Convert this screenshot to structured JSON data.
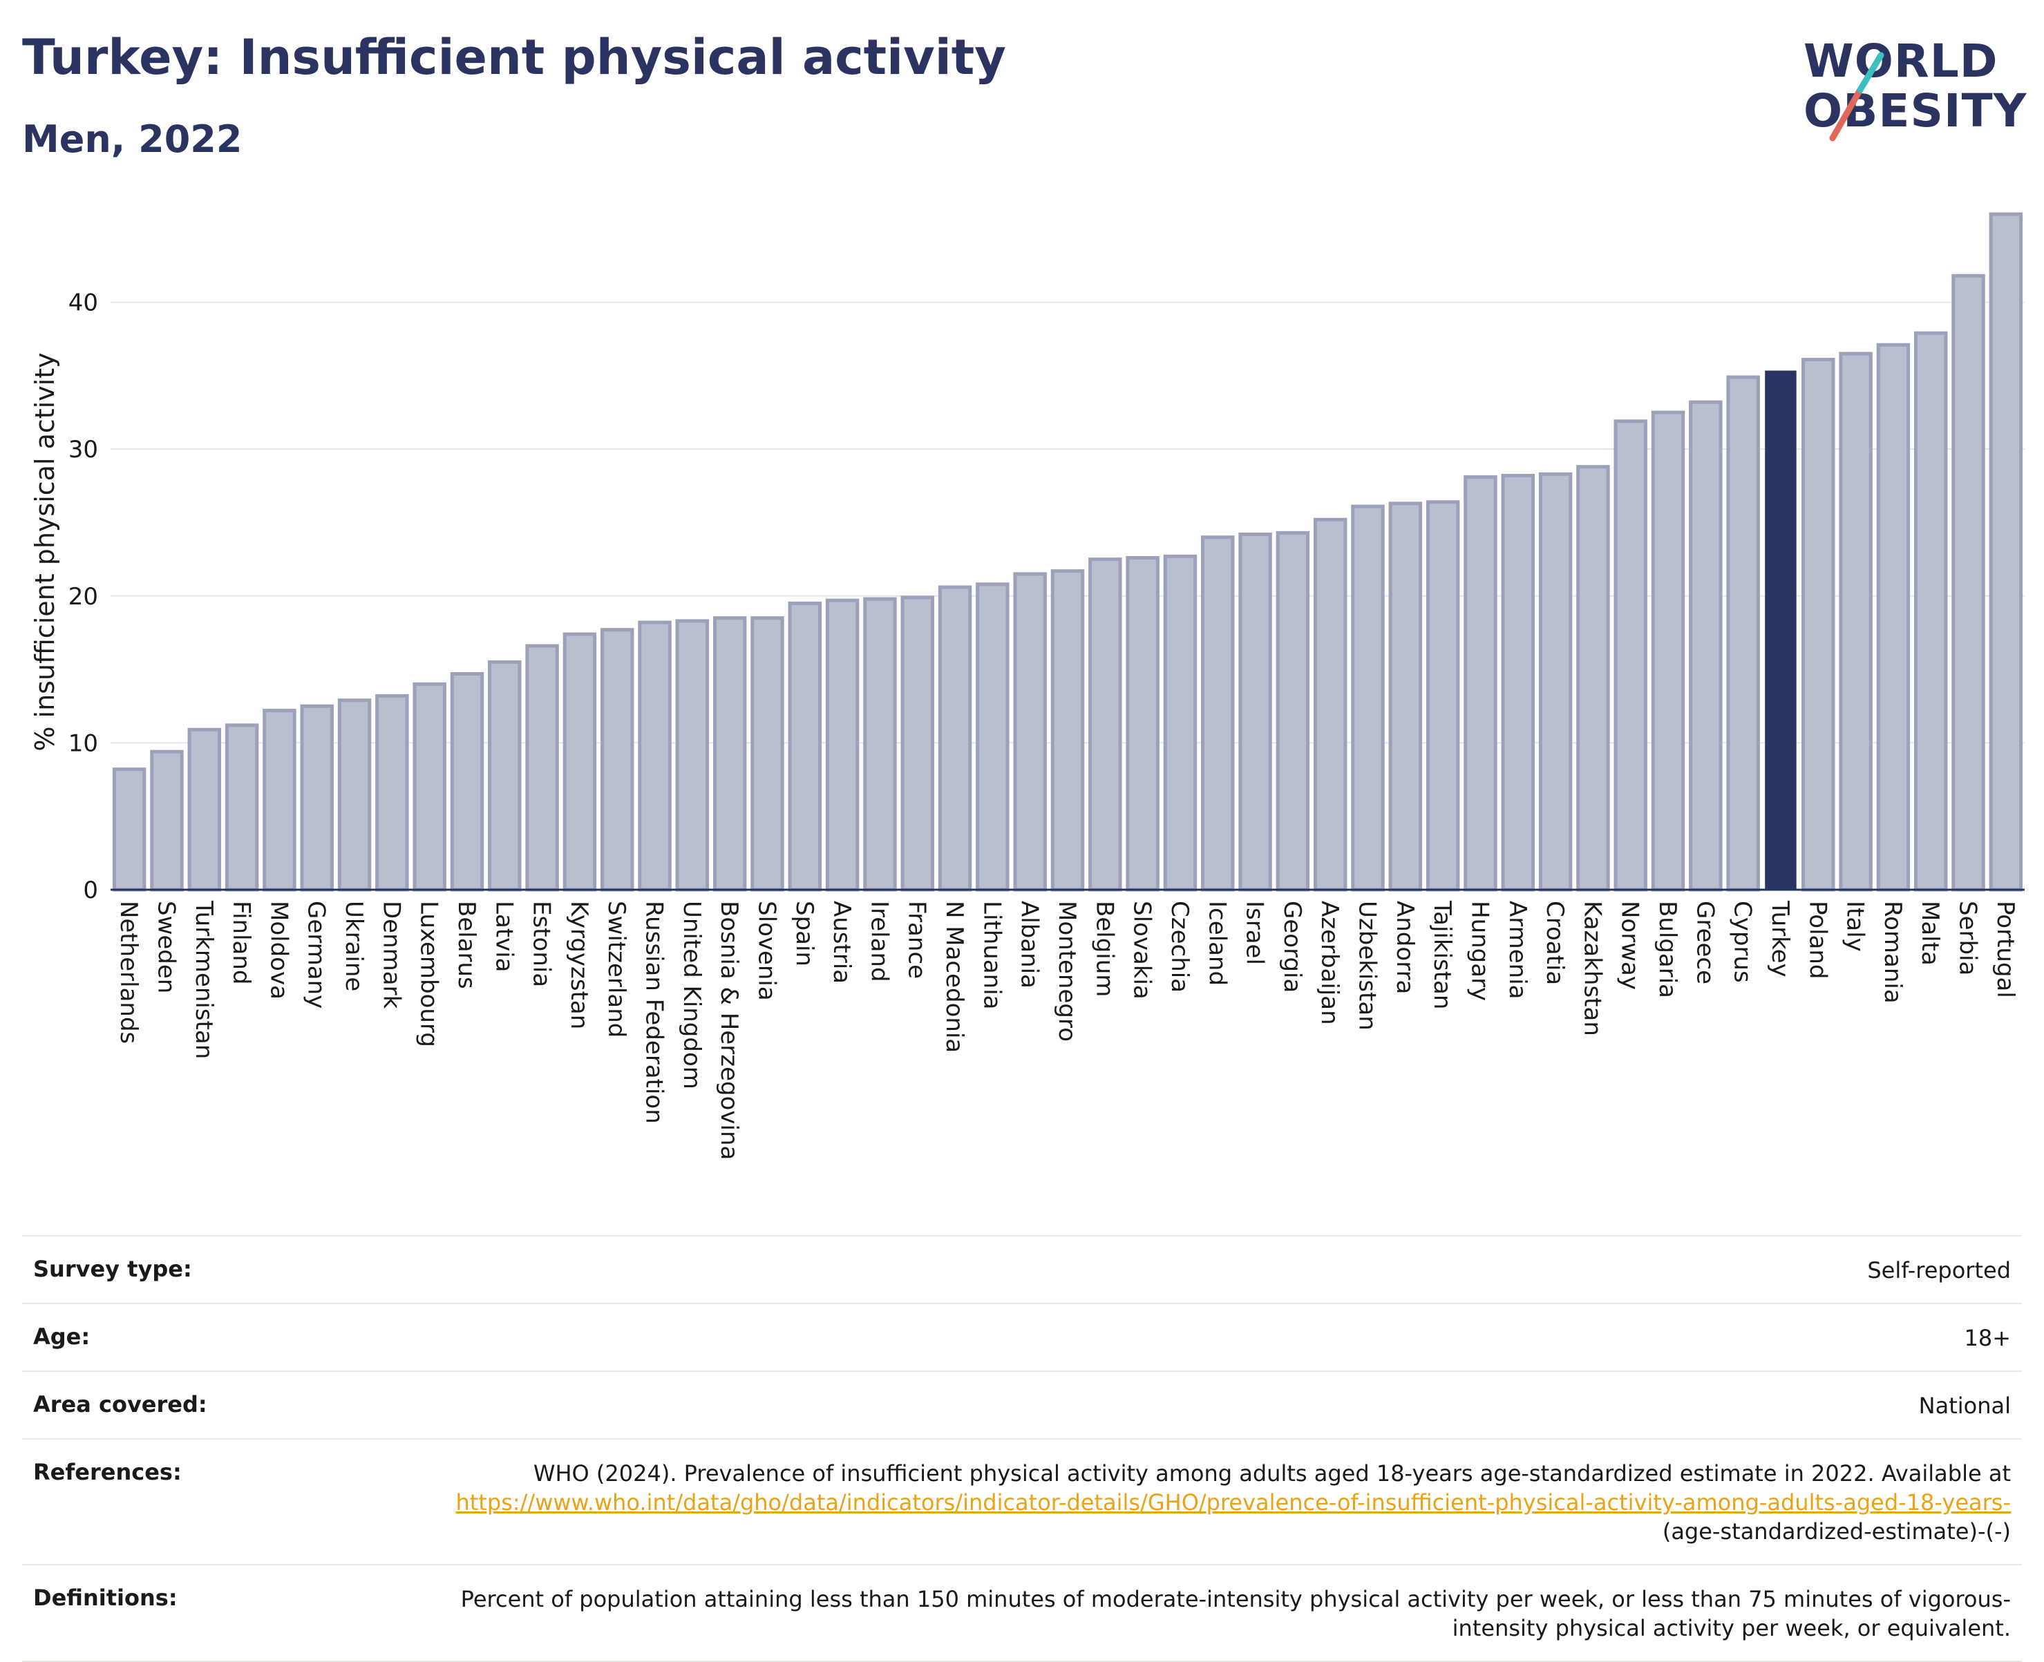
{
  "header": {
    "title": "Turkey: Insufficient physical activity",
    "subtitle": "Men, 2022"
  },
  "logo": {
    "line1": "WORLD",
    "line2": "OBESITY"
  },
  "colors": {
    "highlight": "#2b3360",
    "bar": "#b9bfcf",
    "bar_stroke": "#9aa1b8",
    "accent_teal": "#3cbfc0",
    "accent_red": "#e2675a",
    "link": "#e8a317"
  },
  "chart_data": {
    "type": "bar",
    "ylabel": "% insufficient physical activity",
    "xlabel": "",
    "ylim": [
      0,
      46
    ],
    "yticks": [
      0,
      10,
      20,
      30,
      40
    ],
    "grid": true,
    "highlight": "Turkey",
    "categories": [
      "Netherlands",
      "Sweden",
      "Turkmenistan",
      "Finland",
      "Moldova",
      "Germany",
      "Ukraine",
      "Denmark",
      "Luxembourg",
      "Belarus",
      "Latvia",
      "Estonia",
      "Kyrgyzstan",
      "Switzerland",
      "Russian Federation",
      "United Kingdom",
      "Bosnia & Herzegovina",
      "Slovenia",
      "Spain",
      "Austria",
      "Ireland",
      "France",
      "N Macedonia",
      "Lithuania",
      "Albania",
      "Montenegro",
      "Belgium",
      "Slovakia",
      "Czechia",
      "Iceland",
      "Israel",
      "Georgia",
      "Azerbaijan",
      "Uzbekistan",
      "Andorra",
      "Tajikistan",
      "Hungary",
      "Armenia",
      "Croatia",
      "Kazakhstan",
      "Norway",
      "Bulgaria",
      "Greece",
      "Cyprus",
      "Turkey",
      "Poland",
      "Italy",
      "Romania",
      "Malta",
      "Serbia",
      "Portugal"
    ],
    "values": [
      8.2,
      9.4,
      10.9,
      11.2,
      12.2,
      12.5,
      12.9,
      13.2,
      14.0,
      14.7,
      15.5,
      16.6,
      17.4,
      17.7,
      18.2,
      18.3,
      18.5,
      18.5,
      19.5,
      19.7,
      19.8,
      19.9,
      20.6,
      20.8,
      21.5,
      21.7,
      22.5,
      22.6,
      22.7,
      24.0,
      24.2,
      24.3,
      25.2,
      26.1,
      26.3,
      26.4,
      28.1,
      28.2,
      28.3,
      28.8,
      31.9,
      32.5,
      33.2,
      34.9,
      35.3,
      36.1,
      36.5,
      37.1,
      37.9,
      41.8,
      46.0
    ]
  },
  "meta": {
    "survey_type_label": "Survey type:",
    "survey_type_value": "Self-reported",
    "age_label": "Age:",
    "age_value": "18+",
    "area_label": "Area covered:",
    "area_value": "National",
    "references_label": "References:",
    "references_text": "WHO (2024). Prevalence of insufficient physical activity among adults aged 18-years age-standardized estimate in 2022. Available at",
    "references_link": "https://www.who.int/data/gho/data/indicators/indicator-details/GHO/prevalence-of-insufficient-physical-activity-among-adults-aged-18-years-",
    "references_suffix": "(age-standardized-estimate)-(-)",
    "definitions_label": "Definitions:",
    "definitions_text": "Percent of population attaining less than 150 minutes of moderate-intensity physical activity per week, or less than 75 minutes of vigorous-intensity physical activity per week, or equivalent."
  }
}
